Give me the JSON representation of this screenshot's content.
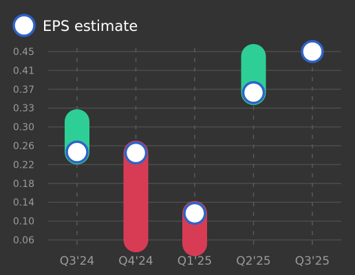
{
  "chart_data": {
    "type": "range-bar",
    "legend": {
      "label": "EPS estimate",
      "placement": "top-left"
    },
    "categories": [
      "Q3'24",
      "Q4'24",
      "Q1'25",
      "Q2'25",
      "Q3'25"
    ],
    "estimate": [
      0.242,
      0.24,
      0.115,
      0.365,
      0.45
    ],
    "actual": [
      0.305,
      0.06,
      0.052,
      0.44,
      null
    ],
    "y_ticks": [
      "0.06",
      "0.10",
      "0.14",
      "0.18",
      "0.22",
      "0.26",
      "0.30",
      "0.33",
      "0.37",
      "0.41",
      "0.45"
    ],
    "grid": true,
    "colors": {
      "background": "#333333",
      "beat": "#2ecf97",
      "miss": "#d83c55",
      "estimate_fill": "#ffffff",
      "estimate_stroke": "#2f63c8",
      "grid": "#4c4c4c",
      "vertical_grid": "#5a5a5a",
      "label": "#9a9a9a"
    }
  }
}
